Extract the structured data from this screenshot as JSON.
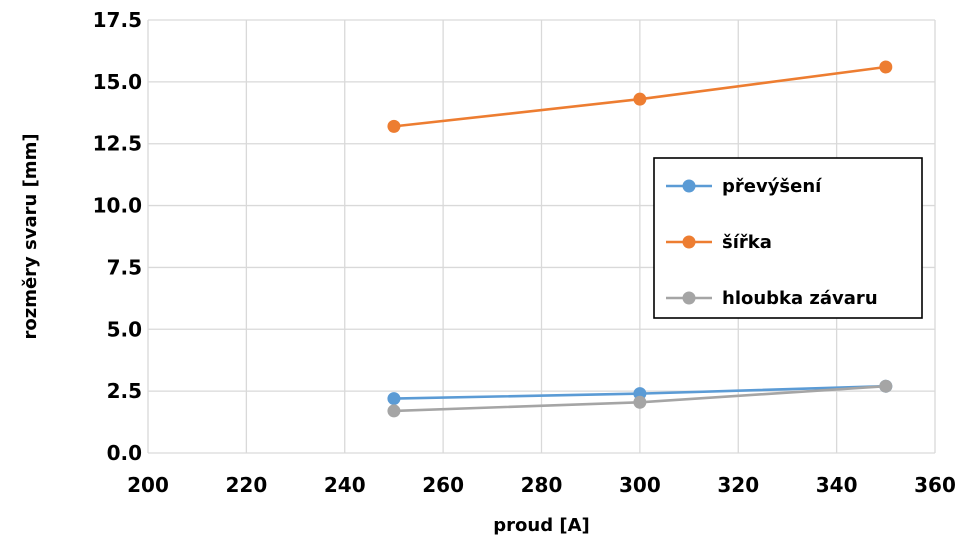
{
  "chart_data": {
    "type": "line",
    "title": "",
    "xlabel": "proud [A]",
    "ylabel": "rozměry svaru [mm]",
    "xlim": [
      200,
      360
    ],
    "ylim": [
      0,
      17.5
    ],
    "x_ticks": [
      200,
      220,
      240,
      260,
      280,
      300,
      320,
      340,
      360
    ],
    "y_ticks": [
      "0.0",
      "2.5",
      "5.0",
      "7.5",
      "10.0",
      "12.5",
      "15.0",
      "17.5"
    ],
    "grid": true,
    "legend_position": "right",
    "x": [
      250,
      300,
      350
    ],
    "series": [
      {
        "name": "převýšení",
        "values": [
          2.2,
          2.4,
          2.7
        ],
        "color": "#5B9BD5"
      },
      {
        "name": "šířka",
        "values": [
          13.2,
          14.3,
          15.6
        ],
        "color": "#ED7D31"
      },
      {
        "name": "hloubka závaru",
        "values": [
          1.7,
          2.05,
          2.7
        ],
        "color": "#A5A5A5"
      }
    ]
  }
}
